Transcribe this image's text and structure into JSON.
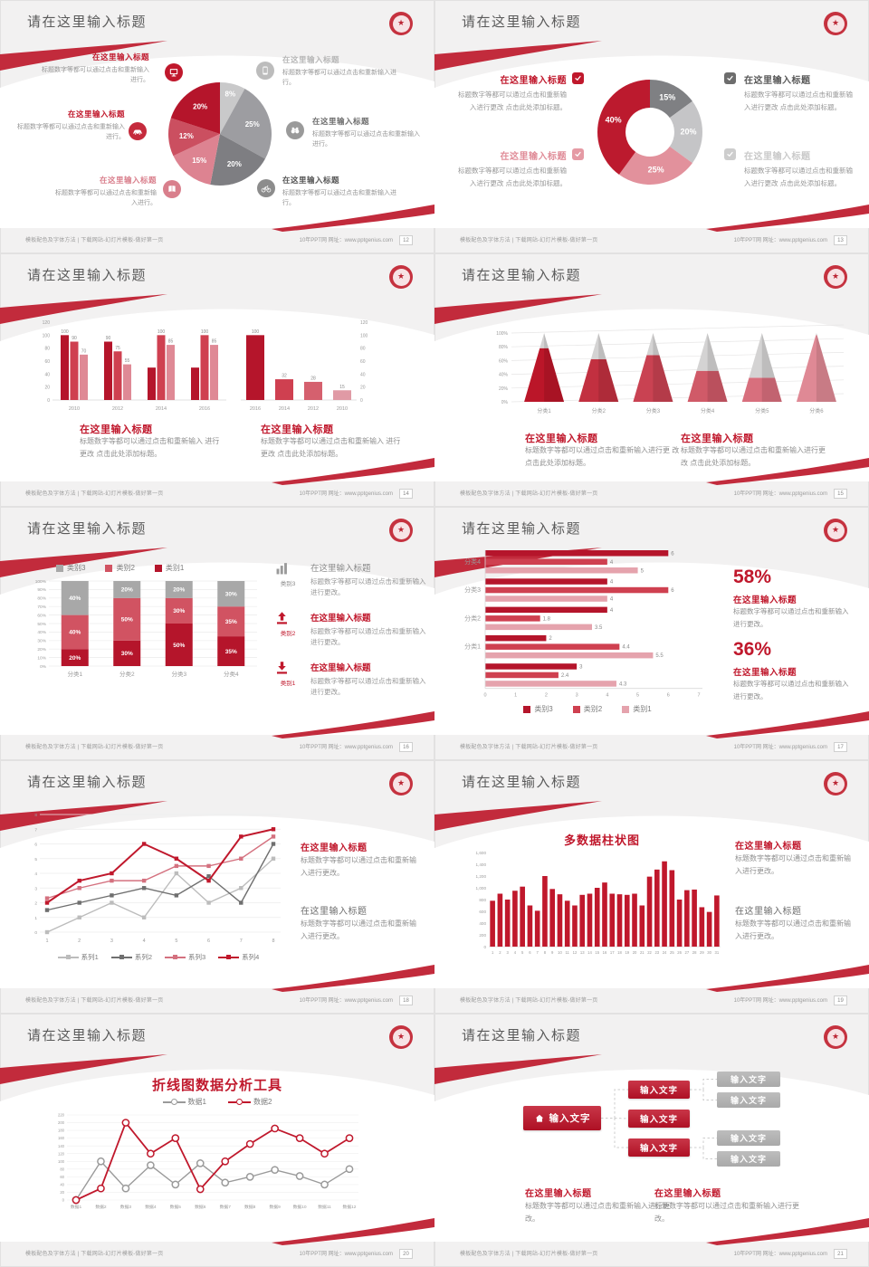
{
  "common": {
    "slide_title": "请在这里输入标题",
    "footer_left": "模板配色及字体方法 | 下载网站-幻灯片模板-做好第一页",
    "footer_right": "10年PPT网 网址：www.pptgenius.com",
    "brand_red": "#c0182c",
    "logo_glyph": "★"
  },
  "slides": [
    {
      "page_no": "12",
      "left_items": [
        {
          "title": "在这里输入标题",
          "title_color": "#c0182c",
          "desc": "标题数字等都可以通过点击和重新输入进行。",
          "icon": "monitor",
          "icon_bg": "#c0182c"
        },
        {
          "title": "在这里输入标题",
          "title_color": "#c0182c",
          "desc": "标题数字等都可以通过点击和重新输入进行。",
          "icon": "car",
          "icon_bg": "#c52a3c"
        },
        {
          "title": "在这里输入标题",
          "title_color": "#d97f8c",
          "desc": "标题数字等都可以通过点击和重新输入进行。",
          "icon": "book",
          "icon_bg": "#d97f8c"
        }
      ],
      "right_items": [
        {
          "title": "在这里输入标题",
          "title_color": "#b7b7b7",
          "desc": "标题数字等都可以通过点击和重新输入进行。",
          "icon": "phone",
          "icon_bg": "#bcbcbc"
        },
        {
          "title": "在这里输入标题",
          "title_color": "#6e6e6e",
          "desc": "标题数字等都可以通过点击和重新输入进行。",
          "icon": "binoculars",
          "icon_bg": "#9a9a9a"
        },
        {
          "title": "在这里输入标题",
          "title_color": "#555555",
          "desc": "标题数字等都可以通过点击和重新输入进行。",
          "icon": "bicycle",
          "icon_bg": "#8c8c8c"
        }
      ]
    },
    {
      "page_no": "13",
      "left_items": [
        {
          "title": "在这里输入标题",
          "title_color": "#c0182c",
          "check_color": "#c0182c",
          "desc": "标题数字等都可以通过点击和重新输入进行更改 点击此处添加标题。"
        },
        {
          "title": "在这里输入标题",
          "title_color": "#e08d99",
          "check_color": "#e59aa4",
          "desc": "标题数字等都可以通过点击和重新输入进行更改 点击此处添加标题。"
        }
      ],
      "right_items": [
        {
          "title": "在这里输入标题",
          "title_color": "#575757",
          "check_color": "#6d6d6d",
          "desc": "标题数字等都可以通过点击和重新输入进行更改 点击此处添加标题。"
        },
        {
          "title": "在这里输入标题",
          "title_color": "#c9c9c9",
          "check_color": "#cdcdcd",
          "desc": "标题数字等都可以通过点击和重新输入进行更改 点击此处添加标题。"
        }
      ]
    },
    {
      "page_no": "14",
      "blocks": [
        {
          "title": "在这里输入标题",
          "title_color": "#c0182c",
          "desc": "标题数字等都可以通过点击和重新输入 进行更改 点击此处添加标题。"
        },
        {
          "title": "在这里输入标题",
          "title_color": "#c0182c",
          "desc": "标题数字等都可以通过点击和重新输入 进行更改 点击此处添加标题。"
        }
      ]
    },
    {
      "page_no": "15",
      "blocks": [
        {
          "title": "在这里输入标题",
          "title_color": "#c0182c",
          "desc": "标题数字等都可以通过点击和重新输入进行更 改 点击此处添加标题。"
        },
        {
          "title": "在这里输入标题",
          "title_color": "#c0182c",
          "desc": "标题数字等都可以通过点击和重新输入进行更 改 点击此处添加标题。"
        }
      ]
    },
    {
      "page_no": "16",
      "items": [
        {
          "icon": "chart-bars",
          "icon_label": "类别3",
          "label_color": "#8a8a8a",
          "title": "在这里输入标题",
          "title_color": "#8a8a8a",
          "title_bold": "normal",
          "desc": "标题数字等都可以通过点击和重新输入进行更改。"
        },
        {
          "icon": "arrow-up-bar",
          "icon_label": "类别2",
          "label_color": "#c0182c",
          "title": "在这里输入标题",
          "title_color": "#c0182c",
          "title_bold": "bold",
          "desc": "标题数字等都可以通过点击和重新输入进行更改。"
        },
        {
          "icon": "arrow-down-bar",
          "icon_label": "类别1",
          "label_color": "#c0182c",
          "title": "在这里输入标题",
          "title_color": "#c0182c",
          "title_bold": "bold",
          "desc": "标题数字等都可以通过点击和重新输入进行更改。"
        }
      ]
    },
    {
      "page_no": "17",
      "stats": [
        {
          "value": "58%",
          "title": "在这里输入标题",
          "desc": "标题数字等都可以通过点击和重新输入进行更改。"
        },
        {
          "value": "36%",
          "title": "在这里输入标题",
          "desc": "标题数字等都可以通过点击和重新输入进行更改。"
        }
      ]
    },
    {
      "page_no": "18",
      "blocks": [
        {
          "title": "在这里输入标题",
          "title_color": "#c0182c",
          "desc": "标题数字等都可以通过点击和重新输入进行更改。"
        },
        {
          "title": "在这里输入标题",
          "title_color": "#6e6e6e",
          "desc": "标题数字等都可以通过点击和重新输入进行更改。"
        }
      ]
    },
    {
      "page_no": "19",
      "blocks": [
        {
          "title": "在这里输入标题",
          "title_color": "#c0182c",
          "desc": "标题数字等都可以通过点击和重新输入进行更改。"
        },
        {
          "title": "在这里输入标题",
          "title_color": "#6e6e6e",
          "desc": "标题数字等都可以通过点击和重新输入进行更改。"
        }
      ]
    },
    {
      "page_no": "20"
    },
    {
      "page_no": "21",
      "nodes": {
        "root": "输入文字",
        "mids": [
          "输入文字",
          "输入文字",
          "输入文字"
        ],
        "leaves": [
          "输入文字",
          "输入文字",
          "输入文字",
          "输入文字"
        ]
      },
      "blocks": [
        {
          "title": "在这里输入标题",
          "title_color": "#c0182c",
          "desc": "标题数字等都可以通过点击和重新输入进行更改。"
        },
        {
          "title": "在这里输入标题",
          "title_color": "#c0182c",
          "desc": "标题数字等都可以通过点击和重新输入进行更改。"
        }
      ]
    }
  ],
  "chart_data": [
    {
      "slide": 1,
      "type": "pie",
      "start": "12-oclock",
      "direction": "clockwise",
      "slices": [
        {
          "label": "8%",
          "value": 8,
          "color": "#c9c9ca"
        },
        {
          "label": "25%",
          "value": 25,
          "color": "#9d9da1"
        },
        {
          "label": "20%",
          "value": 20,
          "color": "#7e7e82"
        },
        {
          "label": "15%",
          "value": 15,
          "color": "#dd8391"
        },
        {
          "label": "12%",
          "value": 12,
          "color": "#cb4f60"
        },
        {
          "label": "20%",
          "value": 20,
          "color": "#b5152b"
        }
      ]
    },
    {
      "slide": 2,
      "type": "donut",
      "start": "12-oclock",
      "direction": "clockwise",
      "slices": [
        {
          "label": "15%",
          "value": 15,
          "color": "#7f8083"
        },
        {
          "label": "20%",
          "value": 20,
          "color": "#c5c5c7"
        },
        {
          "label": "25%",
          "value": 25,
          "color": "#e2919c"
        },
        {
          "label": "40%",
          "value": 40,
          "color": "#bc1a2e"
        }
      ]
    },
    {
      "slide": 3,
      "position": "left",
      "type": "bar",
      "axis": "left",
      "categories": [
        "2010",
        "2012",
        "2014",
        "2016"
      ],
      "series": [
        {
          "name": "series1",
          "color": "#b5152b",
          "values": [
            100,
            90,
            50,
            50
          ],
          "labels": [
            "100",
            "90",
            null,
            null
          ]
        },
        {
          "name": "series2",
          "color": "#cf4050",
          "values": [
            90,
            75,
            100,
            100
          ],
          "labels": [
            "90",
            "75",
            "100",
            "100"
          ]
        },
        {
          "name": "series3",
          "color": "#df8995",
          "values": [
            70,
            55,
            85,
            85
          ],
          "labels": [
            "70",
            "55",
            "85",
            "85"
          ]
        }
      ],
      "ylim": [
        0,
        120
      ],
      "ystep": 20
    },
    {
      "slide": 3,
      "position": "right",
      "type": "bar",
      "axis": "right",
      "categories": [
        "2016",
        "2014",
        "2012",
        "2010"
      ],
      "values": [
        100,
        32,
        28,
        15
      ],
      "labels": [
        "100",
        "32",
        "28",
        "15"
      ],
      "colors": [
        "#b5152b",
        "#cf4050",
        "#d5606e",
        "#e09aa5"
      ],
      "ylim": [
        0,
        120
      ],
      "ystep": 20
    },
    {
      "slide": 4,
      "type": "pyramid",
      "categories": [
        "分类1",
        "分类2",
        "分类3",
        "分类4",
        "分类5",
        "分类6"
      ],
      "fill_percent": [
        78,
        62,
        68,
        45,
        35,
        97
      ],
      "colors": [
        "#bb1629",
        "#c23040",
        "#c94252",
        "#d05a68",
        "#d86f7d",
        "#df8995"
      ],
      "top_color": "#d4d3d3",
      "ylim": [
        0,
        100
      ],
      "ystep": 20
    },
    {
      "slide": 5,
      "type": "stacked_bar_100",
      "categories": [
        "分类1",
        "分类2",
        "分类3",
        "分类4"
      ],
      "series": [
        {
          "name": "类别1",
          "color": "#b5152b",
          "values": [
            20,
            30,
            50,
            35
          ]
        },
        {
          "name": "类别2",
          "color": "#d15362",
          "values": [
            40,
            50,
            30,
            35
          ]
        },
        {
          "name": "类别3",
          "color": "#a8a8a8",
          "values": [
            40,
            20,
            20,
            30
          ]
        }
      ],
      "legend_order": [
        "类别3",
        "类别2",
        "类别1"
      ],
      "ylim": [
        0,
        100
      ],
      "ystep": 10
    },
    {
      "slide": 6,
      "type": "hbar",
      "xlim": [
        0,
        7
      ],
      "group_labels": [
        "分类4",
        "分类3",
        "分类2",
        "分类1",
        ""
      ],
      "series_names": [
        "类别3",
        "类别2",
        "类别1"
      ],
      "series_colors": [
        "#b5152b",
        "#cf4050",
        "#e5a3ad"
      ],
      "groups": [
        [
          6,
          4,
          5
        ],
        [
          4,
          6,
          4
        ],
        [
          4,
          1.8,
          3.5
        ],
        [
          2,
          4.4,
          5.5
        ],
        [
          3,
          2.4,
          4.3
        ]
      ]
    },
    {
      "slide": 7,
      "type": "line",
      "marker": "square",
      "x": [
        1,
        2,
        3,
        4,
        5,
        6,
        7,
        8
      ],
      "series": [
        {
          "name": "系列1",
          "color": "#bcbcbc",
          "values": [
            0,
            1,
            2,
            1,
            4,
            2,
            3,
            5
          ]
        },
        {
          "name": "系列2",
          "color": "#6f6f6f",
          "values": [
            1.5,
            2,
            2.5,
            3,
            2.5,
            3.8,
            2,
            6
          ]
        },
        {
          "name": "系列3",
          "color": "#d4717f",
          "values": [
            2.3,
            3,
            3.5,
            3.5,
            4.5,
            4.5,
            5,
            6.5
          ]
        },
        {
          "name": "系列4",
          "color": "#c0182c",
          "values": [
            2,
            3.5,
            4,
            6,
            5,
            3.5,
            6.5,
            7
          ]
        }
      ],
      "ylim": [
        0,
        8
      ],
      "ystep": 1
    },
    {
      "slide": 8,
      "type": "bar",
      "title": "多数据柱状图",
      "color": "#c0182c",
      "categories": [
        1,
        2,
        3,
        4,
        5,
        6,
        7,
        8,
        9,
        10,
        11,
        12,
        13,
        14,
        15,
        16,
        17,
        18,
        19,
        20,
        21,
        22,
        23,
        24,
        25,
        26,
        27,
        28,
        29,
        30,
        31
      ],
      "values": [
        780,
        900,
        800,
        950,
        1020,
        700,
        610,
        1200,
        980,
        890,
        780,
        700,
        880,
        900,
        1000,
        1090,
        900,
        890,
        880,
        900,
        700,
        1190,
        1310,
        1450,
        1300,
        800,
        960,
        970,
        670,
        590,
        870
      ],
      "ylim": [
        0,
        1600
      ],
      "ystep": 200
    },
    {
      "slide": 9,
      "type": "line",
      "title": "折线图数据分析工具",
      "marker": "circle",
      "categories": [
        "数据1",
        "数据2",
        "数据3",
        "数据4",
        "数据5",
        "数据6",
        "数据7",
        "数据8",
        "数据9",
        "数据10",
        "数据11",
        "数据12"
      ],
      "series": [
        {
          "name": "数据1",
          "color": "#9a9a9a",
          "values": [
            0,
            100,
            30,
            90,
            40,
            95,
            45,
            60,
            78,
            62,
            40,
            80
          ]
        },
        {
          "name": "数据2",
          "color": "#c0182c",
          "values": [
            0,
            30,
            200,
            120,
            160,
            28,
            100,
            145,
            185,
            160,
            120,
            160
          ]
        }
      ],
      "ylim": [
        0,
        220
      ],
      "ystep": 20
    }
  ]
}
